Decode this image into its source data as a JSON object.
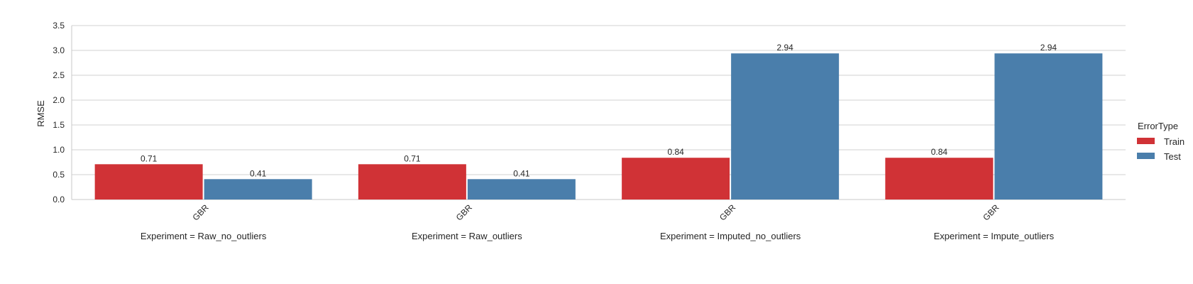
{
  "chart_data": {
    "type": "bar",
    "ylabel": "RMSE",
    "ylim": [
      0,
      3.5
    ],
    "yticks": [
      "0.0",
      "0.5",
      "1.0",
      "1.5",
      "2.0",
      "2.5",
      "3.0",
      "3.5"
    ],
    "grid": true,
    "legend": {
      "title": "ErrorType",
      "placement": "right",
      "entries": [
        "Train",
        "Test"
      ]
    },
    "facets": [
      {
        "title": "Experiment = Raw_no_outliers",
        "categories": [
          "GBR"
        ],
        "series": [
          {
            "name": "Train",
            "values": [
              0.71
            ],
            "labels": [
              "0.71"
            ]
          },
          {
            "name": "Test",
            "values": [
              0.41
            ],
            "labels": [
              "0.41"
            ]
          }
        ]
      },
      {
        "title": "Experiment = Raw_outliers",
        "categories": [
          "GBR"
        ],
        "series": [
          {
            "name": "Train",
            "values": [
              0.71
            ],
            "labels": [
              "0.71"
            ]
          },
          {
            "name": "Test",
            "values": [
              0.41
            ],
            "labels": [
              "0.41"
            ]
          }
        ]
      },
      {
        "title": "Experiment = Imputed_no_outliers",
        "categories": [
          "GBR"
        ],
        "series": [
          {
            "name": "Train",
            "values": [
              0.84
            ],
            "labels": [
              "0.84"
            ]
          },
          {
            "name": "Test",
            "values": [
              2.94
            ],
            "labels": [
              "2.94"
            ]
          }
        ]
      },
      {
        "title": "Experiment = Impute_outliers",
        "categories": [
          "GBR"
        ],
        "series": [
          {
            "name": "Train",
            "values": [
              0.84
            ],
            "labels": [
              "0.84"
            ]
          },
          {
            "name": "Test",
            "values": [
              2.94
            ],
            "labels": [
              "2.94"
            ]
          }
        ]
      }
    ]
  },
  "colors": {
    "Train": "#d03236",
    "Test": "#4a7eab",
    "grid": "#d0d0d0",
    "axis": "#c8c8c8",
    "text": "#262626"
  }
}
